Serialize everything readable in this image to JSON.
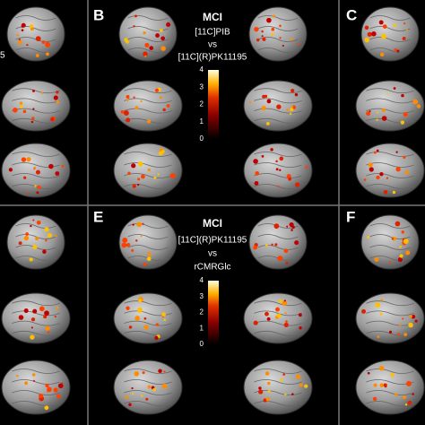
{
  "edge_text": "5",
  "panels": [
    {
      "label": "B",
      "title": "MCI",
      "lines": [
        "[11C]PIB",
        "vs",
        "[11C](R)PK11195"
      ],
      "colorbar_ticks": [
        4,
        3,
        2,
        1,
        0
      ]
    },
    {
      "label": "C"
    },
    {
      "label": "E",
      "title": "MCI",
      "lines": [
        "[11C](R)PK11195",
        "vs",
        "rCMRGlc"
      ],
      "colorbar_ticks": [
        4,
        3,
        2,
        1,
        0
      ]
    },
    {
      "label": "F"
    }
  ]
}
